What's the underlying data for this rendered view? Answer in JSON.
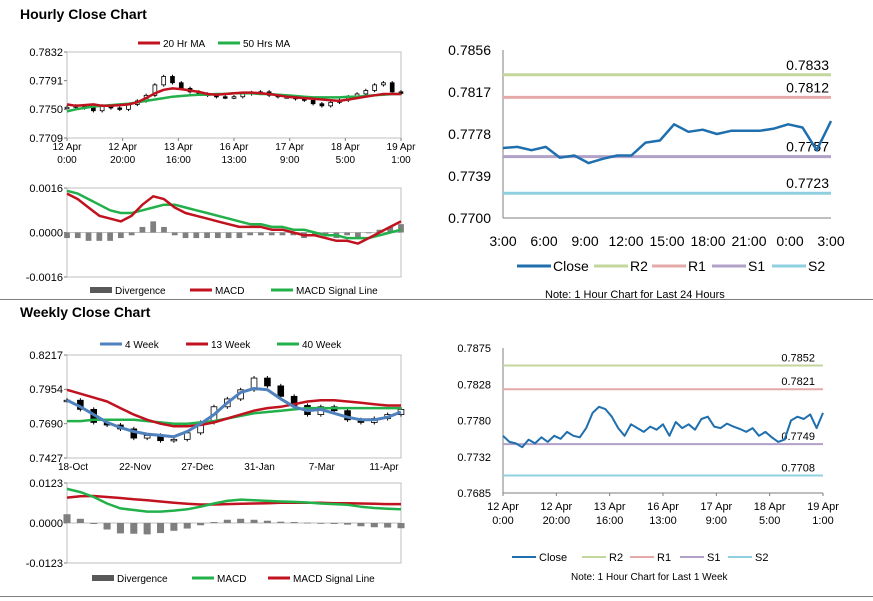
{
  "sections": {
    "hourly_title": "Hourly Close Chart",
    "weekly_title": "Weekly Close Chart"
  },
  "colors": {
    "red": "#c0121f",
    "green": "#22b04a",
    "blue": "#1f6fae",
    "lightblue": "#4f81bd",
    "r2": "#c3d69b",
    "r1": "#e6a9a9",
    "s1": "#b1a0c7",
    "s2": "#8fd0e0",
    "grey": "#7f7f7f",
    "dark": "#595959"
  },
  "chart_data": [
    {
      "id": "hourly_price",
      "type": "candlestick",
      "ylim": [
        0.7709,
        0.7832
      ],
      "yticks": [
        "0.7832",
        "0.7791",
        "0.7750",
        "0.7709"
      ],
      "xticks": [
        [
          "12 Apr",
          "0:00"
        ],
        [
          "12 Apr",
          "20:00"
        ],
        [
          "13 Apr",
          "16:00"
        ],
        [
          "16 Apr",
          "13:00"
        ],
        [
          "17 Apr",
          "9:00"
        ],
        [
          "18 Apr",
          "5:00"
        ],
        [
          "19 Apr",
          "1:00"
        ]
      ],
      "legend": [
        "20 Hr MA",
        "50 Hrs MA"
      ],
      "series": [
        {
          "name": "Close",
          "values": [
            0.7753,
            0.7755,
            0.7752,
            0.7748,
            0.7755,
            0.7752,
            0.775,
            0.7757,
            0.7762,
            0.777,
            0.7785,
            0.7797,
            0.7788,
            0.778,
            0.7775,
            0.7772,
            0.777,
            0.7768,
            0.7767,
            0.7768,
            0.7772,
            0.7774,
            0.7775,
            0.777,
            0.7768,
            0.7768,
            0.7765,
            0.7763,
            0.7758,
            0.7755,
            0.776,
            0.7763,
            0.7768,
            0.7772,
            0.7777,
            0.7785,
            0.7788,
            0.7775,
            0.7773
          ]
        },
        {
          "name": "20 Hr MA",
          "values": [
            0.7757,
            0.7755,
            0.7756,
            0.7757,
            0.7755,
            0.7755,
            0.7756,
            0.7757,
            0.776,
            0.7766,
            0.7773,
            0.7778,
            0.778,
            0.7779,
            0.7777,
            0.7775,
            0.7772,
            0.7771,
            0.7772,
            0.7773,
            0.7774,
            0.7774,
            0.7773,
            0.7772,
            0.777,
            0.7768,
            0.7767,
            0.7766,
            0.7765,
            0.7764,
            0.7763,
            0.7762,
            0.7764,
            0.7766,
            0.7768,
            0.777,
            0.7772,
            0.7772,
            0.7772
          ]
        },
        {
          "name": "50 Hrs MA",
          "values": [
            0.7747,
            0.775,
            0.7752,
            0.7754,
            0.7755,
            0.7756,
            0.7757,
            0.7758,
            0.776,
            0.7762,
            0.7764,
            0.7766,
            0.7768,
            0.7769,
            0.777,
            0.7771,
            0.7771,
            0.7772,
            0.7772,
            0.7773,
            0.7773,
            0.7773,
            0.7772,
            0.7772,
            0.7771,
            0.777,
            0.7769,
            0.7768,
            0.7767,
            0.7767,
            0.7767,
            0.7767,
            0.7768,
            0.7768,
            0.7769,
            0.777,
            0.7771,
            0.7772,
            0.7772
          ]
        }
      ]
    },
    {
      "id": "hourly_macd",
      "type": "macd",
      "ylim": [
        -0.0016,
        0.0016
      ],
      "yticks": [
        "0.0016",
        "0.0000",
        "-0.0016"
      ],
      "legend": [
        "Divergence",
        "MACD",
        "MACD Signal Line"
      ],
      "series": [
        {
          "name": "MACD",
          "values": [
            0.0014,
            0.0012,
            0.0009,
            0.0006,
            0.0005,
            0.0004,
            0.0006,
            0.001,
            0.0013,
            0.0012,
            0.0009,
            0.0007,
            0.0006,
            0.0005,
            0.0004,
            0.0003,
            0.0002,
            0.0002,
            0.0002,
            0.0001,
            0.0001,
            0.0,
            -0.0001,
            -0.0001,
            -0.0002,
            -0.0003,
            -0.0003,
            -0.0004,
            -0.0002,
            0.0,
            0.0002,
            0.0004
          ]
        },
        {
          "name": "MACD Signal Line",
          "values": [
            0.0015,
            0.0014,
            0.0012,
            0.001,
            0.0008,
            0.0007,
            0.0007,
            0.0008,
            0.0009,
            0.001,
            0.001,
            0.0009,
            0.0008,
            0.0007,
            0.0006,
            0.0005,
            0.0004,
            0.0003,
            0.0003,
            0.0002,
            0.0002,
            0.0001,
            0.0001,
            0.0,
            -0.0001,
            -0.0001,
            -0.0002,
            -0.0002,
            -0.0002,
            -0.0001,
            0.0,
            0.0001
          ]
        },
        {
          "name": "Divergence",
          "values": [
            -0.0002,
            -0.0002,
            -0.0003,
            -0.0003,
            -0.0003,
            -0.0002,
            -0.0001,
            0.0002,
            0.0004,
            0.0002,
            -0.0001,
            -0.0002,
            -0.0002,
            -0.0002,
            -0.0002,
            -0.0002,
            -0.0002,
            -0.0001,
            -0.0001,
            -0.0001,
            -0.0001,
            -0.0001,
            -0.0002,
            -0.0001,
            -0.0001,
            -0.0002,
            -0.0001,
            -0.0002,
            0.0,
            0.0001,
            0.0002,
            0.0003
          ]
        }
      ]
    },
    {
      "id": "hourly_24h",
      "type": "line",
      "ylim": [
        0.77,
        0.7856
      ],
      "yticks": [
        "0.7856",
        "0.7817",
        "0.7778",
        "0.7739",
        "0.7700"
      ],
      "xticks": [
        "3:00",
        "6:00",
        "9:00",
        "12:00",
        "15:00",
        "18:00",
        "21:00",
        "0:00",
        "3:00"
      ],
      "legend": [
        "Close",
        "R2",
        "R1",
        "S1",
        "S2"
      ],
      "levels": [
        {
          "name": "R2",
          "value": 0.7833,
          "label": "0.7833"
        },
        {
          "name": "R1",
          "value": 0.7812,
          "label": "0.7812"
        },
        {
          "name": "S1",
          "value": 0.7757,
          "label": "0.7757"
        },
        {
          "name": "S2",
          "value": 0.7723,
          "label": "0.7723"
        }
      ],
      "series": [
        {
          "name": "Close",
          "values": [
            0.7765,
            0.7766,
            0.7763,
            0.7766,
            0.7756,
            0.7758,
            0.7751,
            0.7755,
            0.7758,
            0.7758,
            0.777,
            0.7772,
            0.7787,
            0.778,
            0.7782,
            0.7778,
            0.7781,
            0.7781,
            0.7781,
            0.7783,
            0.7787,
            0.7784,
            0.7763,
            0.779
          ]
        }
      ],
      "note": "Note: 1 Hour Chart for Last 24 Hours"
    },
    {
      "id": "weekly_price",
      "type": "candlestick",
      "ylim": [
        0.7427,
        0.8217
      ],
      "yticks": [
        "0.8217",
        "0.7954",
        "0.7690",
        "0.7427"
      ],
      "xticks": [
        "18-Oct",
        "22-Nov",
        "27-Dec",
        "31-Jan",
        "7-Mar",
        "11-Apr"
      ],
      "legend": [
        "4 Week",
        "13 Week",
        "40 Week"
      ],
      "series": [
        {
          "name": "Close",
          "values": [
            0.787,
            0.78,
            0.77,
            0.768,
            0.765,
            0.758,
            0.76,
            0.756,
            0.757,
            0.762,
            0.77,
            0.782,
            0.788,
            0.795,
            0.804,
            0.798,
            0.79,
            0.783,
            0.776,
            0.782,
            0.779,
            0.772,
            0.77,
            0.773,
            0.776,
            0.78
          ]
        },
        {
          "name": "4 Week",
          "values": [
            0.787,
            0.782,
            0.776,
            0.77,
            0.766,
            0.763,
            0.761,
            0.76,
            0.759,
            0.763,
            0.769,
            0.776,
            0.785,
            0.793,
            0.796,
            0.795,
            0.788,
            0.782,
            0.779,
            0.78,
            0.777,
            0.774,
            0.772,
            0.772,
            0.774,
            0.778
          ]
        },
        {
          "name": "13 Week",
          "values": [
            0.795,
            0.792,
            0.789,
            0.786,
            0.781,
            0.776,
            0.772,
            0.769,
            0.767,
            0.767,
            0.768,
            0.77,
            0.773,
            0.776,
            0.779,
            0.781,
            0.782,
            0.784,
            0.786,
            0.787,
            0.787,
            0.786,
            0.785,
            0.784,
            0.783,
            0.783
          ]
        },
        {
          "name": "40 Week",
          "values": [
            0.771,
            0.771,
            0.772,
            0.772,
            0.772,
            0.772,
            0.771,
            0.77,
            0.769,
            0.769,
            0.77,
            0.771,
            0.773,
            0.775,
            0.777,
            0.778,
            0.779,
            0.78,
            0.781,
            0.781,
            0.781,
            0.781,
            0.781,
            0.781,
            0.781,
            0.781
          ]
        }
      ]
    },
    {
      "id": "weekly_macd",
      "type": "macd",
      "ylim": [
        -0.0123,
        0.0123
      ],
      "yticks": [
        "0.0123",
        "0.0000",
        "-0.0123"
      ],
      "legend": [
        "Divergence",
        "MACD",
        "MACD Signal Line"
      ],
      "series": [
        {
          "name": "MACD",
          "values": [
            0.0105,
            0.0095,
            0.008,
            0.006,
            0.0045,
            0.004,
            0.0035,
            0.0035,
            0.0038,
            0.0042,
            0.005,
            0.006,
            0.0068,
            0.0072,
            0.007,
            0.0068,
            0.0066,
            0.0065,
            0.0063,
            0.006,
            0.0058,
            0.0056,
            0.005,
            0.0046,
            0.0044,
            0.0042
          ]
        },
        {
          "name": "MACD Signal Line",
          "values": [
            0.0078,
            0.0082,
            0.0083,
            0.008,
            0.0077,
            0.0073,
            0.007,
            0.0066,
            0.0062,
            0.0059,
            0.0057,
            0.0057,
            0.0058,
            0.0059,
            0.006,
            0.0061,
            0.0062,
            0.0062,
            0.0062,
            0.0062,
            0.0061,
            0.0061,
            0.006,
            0.0059,
            0.0058,
            0.0058
          ]
        },
        {
          "name": "Divergence",
          "values": [
            0.0027,
            0.0013,
            -0.0003,
            -0.002,
            -0.0032,
            -0.0033,
            -0.0035,
            -0.0031,
            -0.0024,
            -0.0017,
            -0.0007,
            0.0003,
            0.001,
            0.0013,
            0.001,
            0.0007,
            0.0004,
            0.0003,
            0.0001,
            -0.0002,
            -0.0003,
            -0.0005,
            -0.001,
            -0.0013,
            -0.0014,
            -0.0016
          ]
        }
      ]
    },
    {
      "id": "weekly_1w",
      "type": "line",
      "ylim": [
        0.7685,
        0.7875
      ],
      "yticks": [
        "0.7875",
        "0.7828",
        "0.7780",
        "0.7732",
        "0.7685"
      ],
      "xticks": [
        [
          "12 Apr",
          "0:00"
        ],
        [
          "12 Apr",
          "20:00"
        ],
        [
          "13 Apr",
          "16:00"
        ],
        [
          "16 Apr",
          "13:00"
        ],
        [
          "17 Apr",
          "9:00"
        ],
        [
          "18 Apr",
          "5:00"
        ],
        [
          "19 Apr",
          "1:00"
        ]
      ],
      "legend": [
        "Close",
        "R2",
        "R1",
        "S1",
        "S2"
      ],
      "levels": [
        {
          "name": "R2",
          "value": 0.7852,
          "label": "0.7852"
        },
        {
          "name": "R1",
          "value": 0.7821,
          "label": "0.7821"
        },
        {
          "name": "S1",
          "value": 0.7749,
          "label": "0.7749"
        },
        {
          "name": "S2",
          "value": 0.7708,
          "label": "0.7708"
        }
      ],
      "series": [
        {
          "name": "Close",
          "values": [
            0.776,
            0.7752,
            0.775,
            0.7745,
            0.7755,
            0.775,
            0.7758,
            0.7752,
            0.776,
            0.7756,
            0.7765,
            0.776,
            0.7758,
            0.777,
            0.779,
            0.7798,
            0.7795,
            0.7785,
            0.777,
            0.776,
            0.7775,
            0.777,
            0.7765,
            0.7772,
            0.7768,
            0.7775,
            0.776,
            0.7778,
            0.777,
            0.7775,
            0.7768,
            0.7782,
            0.7785,
            0.7772,
            0.777,
            0.7776,
            0.7772,
            0.7769,
            0.7765,
            0.777,
            0.776,
            0.7765,
            0.7758,
            0.7752,
            0.7755,
            0.778,
            0.7785,
            0.7782,
            0.7788,
            0.777,
            0.779
          ]
        }
      ],
      "note": "Note: 1 Hour Chart for Last 1 Week"
    }
  ]
}
